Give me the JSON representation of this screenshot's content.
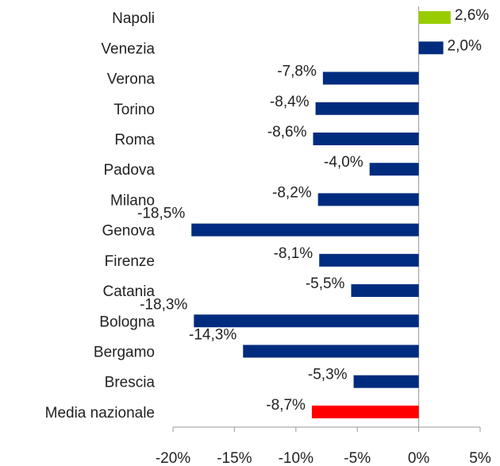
{
  "chart_data": {
    "type": "hbar",
    "categories": [
      "Napoli",
      "Venezia",
      "Verona",
      "Torino",
      "Roma",
      "Padova",
      "Milano",
      "Genova",
      "Firenze",
      "Catania",
      "Bologna",
      "Bergamo",
      "Brescia",
      "Media nazionale"
    ],
    "values": [
      2.6,
      2.0,
      -7.8,
      -8.4,
      -8.6,
      -4.0,
      -8.2,
      -18.5,
      -8.1,
      -5.5,
      -18.3,
      -14.3,
      -5.3,
      -8.7
    ],
    "value_labels": [
      "2,6%",
      "2,0%",
      "-7,8%",
      "-8,4%",
      "-8,6%",
      "-4,0%",
      "-8,2%",
      "-18,5%",
      "-8,1%",
      "-5,5%",
      "-18,3%",
      "-14,3%",
      "-5,3%",
      "-8,7%"
    ],
    "colors": [
      "#99cc00",
      "#002c7f",
      "#002c7f",
      "#002c7f",
      "#002c7f",
      "#002c7f",
      "#002c7f",
      "#002c7f",
      "#002c7f",
      "#002c7f",
      "#002c7f",
      "#002c7f",
      "#002c7f",
      "#ff0000"
    ],
    "xlim": [
      -20,
      5
    ],
    "xticks": [
      {
        "value": -20,
        "label": "-20%"
      },
      {
        "value": -15,
        "label": "-15%"
      },
      {
        "value": -10,
        "label": "-10%"
      },
      {
        "value": -5,
        "label": "-5%"
      },
      {
        "value": 0,
        "label": "0%"
      },
      {
        "value": 5,
        "label": "5%"
      }
    ]
  }
}
